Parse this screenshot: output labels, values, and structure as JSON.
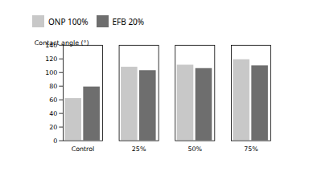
{
  "chart_data": {
    "type": "bar",
    "categories": [
      "Control",
      "25%",
      "50%",
      "75%"
    ],
    "series": [
      {
        "name": "ONP  100%",
        "color": "#c8c8c8",
        "values": [
          62,
          108,
          111,
          119
        ]
      },
      {
        "name": "EFB  20%",
        "color": "#6e6e6e",
        "values": [
          79,
          103,
          106,
          110
        ]
      }
    ],
    "ylabel": "Contact angle (°)",
    "ylim": [
      0,
      140
    ],
    "yticks": [
      0,
      20,
      40,
      60,
      80,
      100,
      120,
      140
    ],
    "grid": false,
    "legend": "top"
  }
}
